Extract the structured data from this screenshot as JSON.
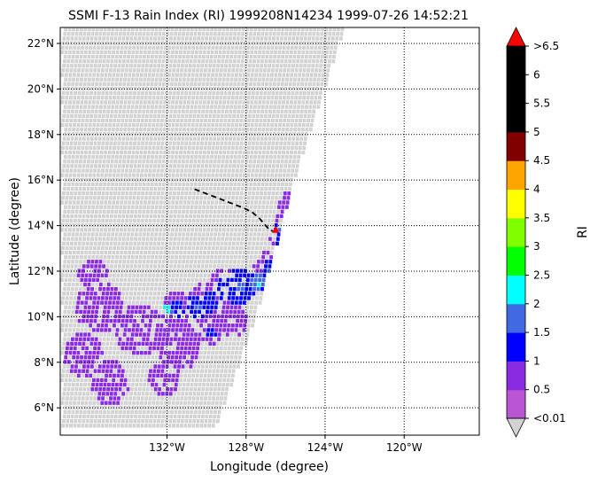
{
  "chart_data": {
    "type": "heatmap",
    "title": "SSMI F-13 Rain Index (RI) 1999208N14234 1999-07-26 14:52:21",
    "xlabel": "Longitude (degree)",
    "ylabel": "Latitude (degree)",
    "xlim": [
      -137.4,
      -116.2
    ],
    "ylim": [
      4.8,
      22.7
    ],
    "x_ticks": [
      {
        "value": -132,
        "label": "132°W"
      },
      {
        "value": -128,
        "label": "128°W"
      },
      {
        "value": -124,
        "label": "124°W"
      },
      {
        "value": -120,
        "label": "120°W"
      }
    ],
    "y_ticks": [
      {
        "value": 6,
        "label": "6°N"
      },
      {
        "value": 8,
        "label": "8°N"
      },
      {
        "value": 10,
        "label": "10°N"
      },
      {
        "value": 12,
        "label": "12°N"
      },
      {
        "value": 14,
        "label": "14°N"
      },
      {
        "value": 16,
        "label": "16°N"
      },
      {
        "value": 18,
        "label": "18°N"
      },
      {
        "value": 20,
        "label": "20°N"
      },
      {
        "value": 22,
        "label": "22°N"
      }
    ],
    "grid": true,
    "grid_style": "dotted",
    "swath_color": "#d3d3d3",
    "swath_boundary": [
      [
        -137.4,
        22.7
      ],
      [
        -123.1,
        22.7
      ],
      [
        -124.5,
        19.0
      ],
      [
        -125.6,
        16.2
      ],
      [
        -126.4,
        13.6
      ],
      [
        -127.4,
        10.6
      ],
      [
        -128.5,
        7.8
      ],
      [
        -129.6,
        5.2
      ],
      [
        -137.4,
        5.2
      ]
    ],
    "track": {
      "color": "#000000",
      "style": "dashed",
      "points": [
        [
          -130.6,
          15.6
        ],
        [
          -130.0,
          15.4
        ],
        [
          -129.4,
          15.2
        ],
        [
          -128.8,
          15.0
        ],
        [
          -128.2,
          14.8
        ],
        [
          -127.7,
          14.6
        ],
        [
          -127.3,
          14.3
        ],
        [
          -127.0,
          14.0
        ],
        [
          -126.8,
          13.8
        ],
        [
          -126.6,
          13.75
        ]
      ]
    },
    "center_marker": {
      "lon": -126.5,
      "lat": 13.8,
      "color": "#ff0000"
    },
    "rain_clusters": [
      {
        "lon": -125.7,
        "lat": 14.6,
        "level": 1,
        "radius": 0.9
      },
      {
        "lon": -126.2,
        "lat": 13.4,
        "level": 2,
        "radius": 0.7
      },
      {
        "lon": -126.3,
        "lat": 13.9,
        "level": 3,
        "radius": 0.4
      },
      {
        "lon": -125.8,
        "lat": 15.2,
        "level": 1,
        "radius": 0.5
      },
      {
        "lon": -126.9,
        "lat": 12.2,
        "level": 2,
        "radius": 0.8
      },
      {
        "lon": -127.5,
        "lat": 11.6,
        "level": 4,
        "radius": 0.5
      },
      {
        "lon": -126.7,
        "lat": 11.8,
        "level": 5,
        "radius": 0.4
      },
      {
        "lon": -128.4,
        "lat": 11.4,
        "level": 3,
        "radius": 0.8
      },
      {
        "lon": -129.2,
        "lat": 11.3,
        "level": 2,
        "radius": 0.9
      },
      {
        "lon": -130.0,
        "lat": 10.7,
        "level": 2,
        "radius": 1.0
      },
      {
        "lon": -130.6,
        "lat": 10.5,
        "level": 3,
        "radius": 0.6
      },
      {
        "lon": -131.6,
        "lat": 10.4,
        "level": 2,
        "radius": 0.8
      },
      {
        "lon": -132.1,
        "lat": 10.4,
        "level": 5,
        "radius": 0.3
      },
      {
        "lon": -129.9,
        "lat": 9.4,
        "level": 2,
        "radius": 0.6
      },
      {
        "lon": -131.5,
        "lat": 8.8,
        "level": 1,
        "radius": 1.1
      },
      {
        "lon": -133.5,
        "lat": 9.5,
        "level": 1,
        "radius": 1.2
      },
      {
        "lon": -135.5,
        "lat": 10.5,
        "level": 1,
        "radius": 1.2
      },
      {
        "lon": -136.3,
        "lat": 8.4,
        "level": 1,
        "radius": 1.0
      },
      {
        "lon": -135.0,
        "lat": 7.2,
        "level": 1,
        "radius": 1.0
      },
      {
        "lon": -132.2,
        "lat": 7.4,
        "level": 1,
        "radius": 0.8
      },
      {
        "lon": -128.8,
        "lat": 10.0,
        "level": 1,
        "radius": 0.8
      },
      {
        "lon": -135.8,
        "lat": 11.8,
        "level": 1,
        "radius": 0.8
      }
    ],
    "colorbar": {
      "label": "RI",
      "top_extension_color": "#ff0000",
      "bottom_extension_color": "#d3d3d3",
      "bins": [
        {
          "color": "#ba55d3"
        },
        {
          "color": "#8a2be2"
        },
        {
          "color": "#0000ff"
        },
        {
          "color": "#4169e1"
        },
        {
          "color": "#00ffff"
        },
        {
          "color": "#00ff00"
        },
        {
          "color": "#7fff00"
        },
        {
          "color": "#ffff00"
        },
        {
          "color": "#ffa500"
        },
        {
          "color": "#800000"
        },
        {
          "color": "#000000"
        },
        {
          "color": "#000000"
        },
        {
          "color": "#000000"
        }
      ],
      "tick_labels": [
        "<0.01",
        "0.5",
        "1",
        "1.5",
        "2",
        "2.5",
        "3",
        "3.5",
        "4",
        "4.5",
        "5",
        "5.5",
        "6",
        ">6.5"
      ]
    }
  }
}
